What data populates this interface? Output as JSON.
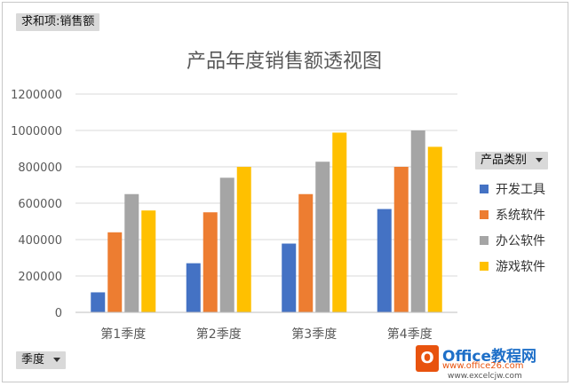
{
  "value_field": {
    "label": "求和项:销售额"
  },
  "category_field": {
    "label": "季度"
  },
  "legend_field": {
    "label": "产品类别"
  },
  "watermark": {
    "logo_icon": "office-logo-icon",
    "brand": "Office教程网",
    "site": "www.office26.com",
    "site2": "www.excelcjw.com"
  },
  "chart_data": {
    "type": "bar",
    "title": "产品年度销售额透视图",
    "xlabel": "",
    "ylabel": "",
    "categories": [
      "第1季度",
      "第2季度",
      "第3季度",
      "第4季度"
    ],
    "ylim": [
      0,
      1200000
    ],
    "yticks": [
      0,
      200000,
      400000,
      600000,
      800000,
      1000000,
      1200000
    ],
    "grid": true,
    "legend_position": "right",
    "series": [
      {
        "name": "开发工具",
        "color": "#4472c4",
        "values": [
          110000,
          270000,
          378000,
          568000
        ]
      },
      {
        "name": "系统软件",
        "color": "#ed7d31",
        "values": [
          440000,
          550000,
          650000,
          800000
        ]
      },
      {
        "name": "办公软件",
        "color": "#a5a5a5",
        "values": [
          650000,
          740000,
          828000,
          1000000
        ]
      },
      {
        "name": "游戏软件",
        "color": "#ffc000",
        "values": [
          560000,
          800000,
          988000,
          910000
        ]
      }
    ]
  }
}
